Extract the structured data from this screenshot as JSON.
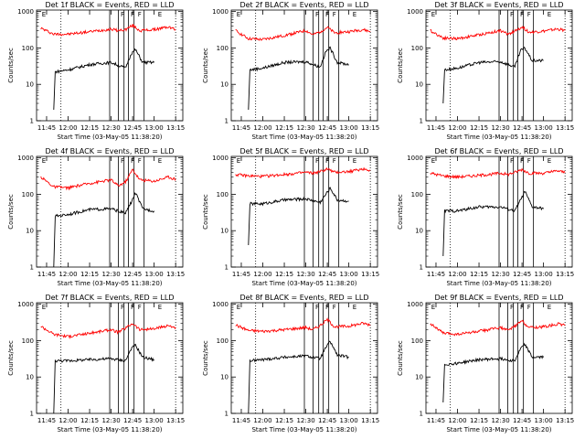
{
  "window": {
    "width": 640,
    "height": 480
  },
  "chart_data": [
    {
      "type": "line",
      "title": "Det 1f BLACK = Events, RED = LLD",
      "ylabel": "Counts/sec",
      "xlabel": "Start Time (03-May-05 11:38:20)",
      "x_ticks": [
        "11:45",
        "12:00",
        "12:15",
        "12:30",
        "12:45",
        "13:00",
        "13:15"
      ],
      "y_ticks": [
        "1",
        "10",
        "100",
        "1000"
      ],
      "ylim": [
        1,
        1100
      ],
      "yscale": "log",
      "series": [
        {
          "color": "#ff0000",
          "x": [
            "11:41",
            "11:50",
            "12:00",
            "12:15",
            "12:30",
            "12:35",
            "12:40",
            "12:45",
            "12:50",
            "13:00",
            "13:10",
            "13:15"
          ],
          "values": [
            350,
            240,
            240,
            280,
            330,
            300,
            320,
            420,
            300,
            320,
            380,
            320
          ]
        },
        {
          "color": "#000000",
          "x": [
            "11:50",
            "11:51",
            "12:00",
            "12:15",
            "12:30",
            "12:40",
            "12:44",
            "12:47",
            "12:52",
            "13:00"
          ],
          "values": [
            2,
            22,
            25,
            35,
            40,
            28,
            70,
            90,
            40,
            40
          ]
        }
      ]
    },
    {
      "type": "line",
      "title": "Det 2f BLACK = Events, RED = LLD",
      "ylabel": "Counts/sec",
      "xlabel": "Start Time (03-May-05 11:38:20)",
      "x_ticks": [
        "11:45",
        "12:00",
        "12:15",
        "12:30",
        "12:45",
        "13:00",
        "13:15"
      ],
      "y_ticks": [
        "1",
        "10",
        "100",
        "1000"
      ],
      "ylim": [
        1,
        1100
      ],
      "yscale": "log",
      "series": [
        {
          "color": "#ff0000",
          "x": [
            "11:41",
            "11:50",
            "12:00",
            "12:15",
            "12:30",
            "12:35",
            "12:40",
            "12:45",
            "12:50",
            "13:00",
            "13:10",
            "13:15"
          ],
          "values": [
            300,
            180,
            170,
            220,
            300,
            230,
            280,
            370,
            260,
            280,
            320,
            280
          ]
        },
        {
          "color": "#000000",
          "x": [
            "11:50",
            "11:51",
            "12:00",
            "12:15",
            "12:30",
            "12:40",
            "12:44",
            "12:47",
            "12:52",
            "13:00"
          ],
          "values": [
            2,
            25,
            28,
            40,
            42,
            30,
            80,
            100,
            40,
            35
          ]
        }
      ]
    },
    {
      "type": "line",
      "title": "Det 3f BLACK = Events, RED = LLD",
      "ylabel": "Counts/sec",
      "xlabel": "Start Time (03-May-05 11:38:20)",
      "x_ticks": [
        "11:45",
        "12:00",
        "12:15",
        "12:30",
        "12:45",
        "13:00",
        "13:15"
      ],
      "y_ticks": [
        "1",
        "10",
        "100",
        "1000"
      ],
      "ylim": [
        1,
        1100
      ],
      "yscale": "log",
      "series": [
        {
          "color": "#ff0000",
          "x": [
            "11:41",
            "11:50",
            "12:00",
            "12:15",
            "12:30",
            "12:35",
            "12:40",
            "12:45",
            "12:50",
            "13:00",
            "13:10",
            "13:15"
          ],
          "values": [
            300,
            190,
            180,
            230,
            300,
            240,
            290,
            380,
            270,
            290,
            330,
            300
          ]
        },
        {
          "color": "#000000",
          "x": [
            "11:50",
            "11:51",
            "12:00",
            "12:15",
            "12:30",
            "12:40",
            "12:44",
            "12:47",
            "12:52",
            "13:00"
          ],
          "values": [
            3,
            25,
            28,
            40,
            42,
            30,
            85,
            100,
            45,
            45
          ]
        }
      ]
    },
    {
      "type": "line",
      "title": "Det 4f BLACK = Events, RED = LLD",
      "ylabel": "Counts/sec",
      "xlabel": "Start Time (03-May-05 11:38:20)",
      "x_ticks": [
        "11:45",
        "12:00",
        "12:15",
        "12:30",
        "12:45",
        "13:00",
        "13:15"
      ],
      "y_ticks": [
        "1",
        "10",
        "100",
        "1000"
      ],
      "ylim": [
        1,
        1100
      ],
      "yscale": "log",
      "series": [
        {
          "color": "#ff0000",
          "x": [
            "11:41",
            "11:50",
            "12:00",
            "12:15",
            "12:30",
            "12:35",
            "12:40",
            "12:45",
            "12:50",
            "13:00",
            "13:10",
            "13:15"
          ],
          "values": [
            300,
            160,
            150,
            200,
            250,
            170,
            220,
            480,
            250,
            230,
            300,
            260
          ]
        },
        {
          "color": "#000000",
          "x": [
            "11:50",
            "11:51",
            "12:00",
            "12:15",
            "12:30",
            "12:40",
            "12:44",
            "12:47",
            "12:52",
            "13:00"
          ],
          "values": [
            1,
            25,
            28,
            38,
            40,
            30,
            60,
            110,
            40,
            35
          ]
        }
      ]
    },
    {
      "type": "line",
      "title": "Det 5f BLACK = Events, RED = LLD",
      "ylabel": "Counts/sec",
      "xlabel": "Start Time (03-May-05 11:38:20)",
      "x_ticks": [
        "11:45",
        "12:00",
        "12:15",
        "12:30",
        "12:45",
        "13:00",
        "13:15"
      ],
      "y_ticks": [
        "1",
        "10",
        "100",
        "1000"
      ],
      "ylim": [
        1,
        1100
      ],
      "yscale": "log",
      "series": [
        {
          "color": "#ff0000",
          "x": [
            "11:41",
            "11:50",
            "12:00",
            "12:15",
            "12:30",
            "12:35",
            "12:40",
            "12:45",
            "12:50",
            "13:00",
            "13:10",
            "13:15"
          ],
          "values": [
            350,
            320,
            310,
            350,
            400,
            380,
            420,
            500,
            400,
            420,
            500,
            460
          ]
        },
        {
          "color": "#000000",
          "x": [
            "11:50",
            "11:51",
            "12:00",
            "12:15",
            "12:30",
            "12:40",
            "12:44",
            "12:47",
            "12:52",
            "13:00"
          ],
          "values": [
            4,
            55,
            55,
            70,
            75,
            60,
            100,
            150,
            70,
            65
          ]
        }
      ]
    },
    {
      "type": "line",
      "title": "Det 6f BLACK = Events, RED = LLD",
      "ylabel": "Counts/sec",
      "xlabel": "Start Time (03-May-05 11:38:20)",
      "x_ticks": [
        "11:45",
        "12:00",
        "12:15",
        "12:30",
        "12:45",
        "13:00",
        "13:15"
      ],
      "y_ticks": [
        "1",
        "10",
        "100",
        "1000"
      ],
      "ylim": [
        1,
        1100
      ],
      "yscale": "log",
      "series": [
        {
          "color": "#ff0000",
          "x": [
            "11:41",
            "11:50",
            "12:00",
            "12:15",
            "12:30",
            "12:35",
            "12:40",
            "12:45",
            "12:50",
            "13:00",
            "13:10",
            "13:15"
          ],
          "values": [
            380,
            320,
            300,
            330,
            380,
            350,
            400,
            480,
            380,
            380,
            440,
            400
          ]
        },
        {
          "color": "#000000",
          "x": [
            "11:50",
            "11:51",
            "12:00",
            "12:15",
            "12:30",
            "12:40",
            "12:44",
            "12:47",
            "12:52",
            "13:00"
          ],
          "values": [
            2,
            35,
            35,
            45,
            45,
            35,
            70,
            120,
            45,
            40
          ]
        }
      ]
    },
    {
      "type": "line",
      "title": "Det 7f BLACK = Events, RED = LLD",
      "ylabel": "Counts/sec",
      "xlabel": "Start Time (03-May-05 11:38:20)",
      "x_ticks": [
        "11:45",
        "12:00",
        "12:15",
        "12:30",
        "12:45",
        "13:00",
        "13:15"
      ],
      "y_ticks": [
        "1",
        "10",
        "100",
        "1000"
      ],
      "ylim": [
        1,
        1100
      ],
      "yscale": "log",
      "series": [
        {
          "color": "#ff0000",
          "x": [
            "11:41",
            "11:50",
            "12:00",
            "12:15",
            "12:30",
            "12:35",
            "12:40",
            "12:45",
            "12:50",
            "13:00",
            "13:10",
            "13:15"
          ],
          "values": [
            250,
            150,
            130,
            160,
            200,
            170,
            220,
            300,
            200,
            210,
            260,
            230
          ]
        },
        {
          "color": "#000000",
          "x": [
            "11:50",
            "11:51",
            "12:00",
            "12:15",
            "12:30",
            "12:40",
            "12:44",
            "12:47",
            "12:52",
            "13:00"
          ],
          "values": [
            1,
            28,
            28,
            30,
            32,
            28,
            60,
            75,
            35,
            30
          ]
        }
      ]
    },
    {
      "type": "line",
      "title": "Det 8f BLACK = Events, RED = LLD",
      "ylabel": "Counts/sec",
      "xlabel": "Start Time (03-May-05 11:38:20)",
      "x_ticks": [
        "11:45",
        "12:00",
        "12:15",
        "12:30",
        "12:45",
        "13:00",
        "13:15"
      ],
      "y_ticks": [
        "1",
        "10",
        "100",
        "1000"
      ],
      "ylim": [
        1,
        1100
      ],
      "yscale": "log",
      "series": [
        {
          "color": "#ff0000",
          "x": [
            "11:41",
            "11:50",
            "12:00",
            "12:15",
            "12:30",
            "12:35",
            "12:40",
            "12:45",
            "12:50",
            "13:00",
            "13:10",
            "13:15"
          ],
          "values": [
            270,
            190,
            180,
            200,
            230,
            200,
            260,
            380,
            240,
            250,
            300,
            270
          ]
        },
        {
          "color": "#000000",
          "x": [
            "11:50",
            "11:51",
            "12:00",
            "12:15",
            "12:30",
            "12:40",
            "12:44",
            "12:47",
            "12:52",
            "13:00"
          ],
          "values": [
            1,
            28,
            30,
            35,
            38,
            32,
            65,
            95,
            40,
            35
          ]
        }
      ]
    },
    {
      "type": "line",
      "title": "Det 9f BLACK = Events, RED = LLD",
      "ylabel": "Counts/sec",
      "xlabel": "Start Time (03-May-05 11:38:20)",
      "x_ticks": [
        "11:45",
        "12:00",
        "12:15",
        "12:30",
        "12:45",
        "13:00",
        "13:15"
      ],
      "y_ticks": [
        "1",
        "10",
        "100",
        "1000"
      ],
      "ylim": [
        1,
        1100
      ],
      "yscale": "log",
      "series": [
        {
          "color": "#ff0000",
          "x": [
            "11:41",
            "11:50",
            "12:00",
            "12:15",
            "12:30",
            "12:35",
            "12:40",
            "12:45",
            "12:50",
            "13:00",
            "13:10",
            "13:15"
          ],
          "values": [
            300,
            160,
            150,
            180,
            230,
            190,
            250,
            350,
            230,
            240,
            290,
            260
          ]
        },
        {
          "color": "#000000",
          "x": [
            "11:50",
            "11:51",
            "12:00",
            "12:15",
            "12:30",
            "12:40",
            "12:44",
            "12:47",
            "12:52",
            "13:00"
          ],
          "values": [
            2,
            22,
            24,
            30,
            32,
            28,
            60,
            80,
            35,
            35
          ]
        }
      ]
    }
  ]
}
